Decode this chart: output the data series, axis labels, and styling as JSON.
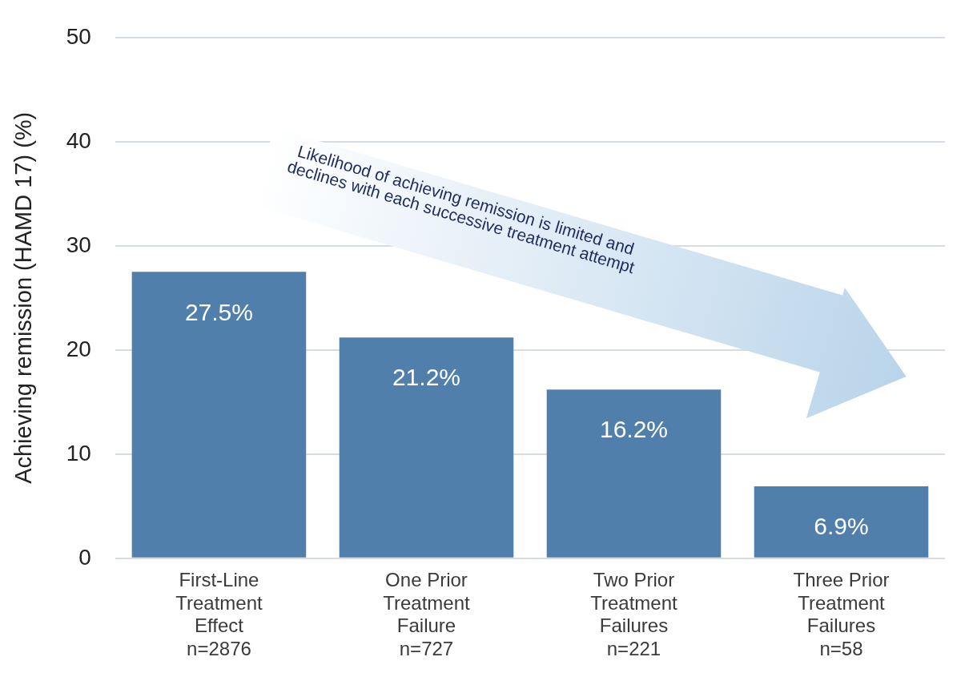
{
  "chart_data": {
    "type": "bar",
    "ylabel": "Achieving remission (HAMD 17) (%)",
    "categories": [
      "First-Line\nTreatment\nEffect\nn=2876",
      "One Prior\nTreatment\nFailure\nn=727",
      "Two Prior\nTreatment\nFailures\nn=221",
      "Three Prior\nTreatment\nFailures\nn=58"
    ],
    "values": [
      27.5,
      21.2,
      16.2,
      6.9
    ],
    "value_labels": [
      "27.5%",
      "21.2%",
      "16.2%",
      "6.9%"
    ],
    "color": "#4f7faa",
    "ylim": [
      0,
      50
    ],
    "yticks": [
      0,
      10,
      20,
      30,
      40,
      50
    ],
    "grid": "y",
    "legend": false,
    "annotations": [
      "Likelihood of achieving remission is limited and\ndeclines with each successive treatment attempt"
    ]
  }
}
